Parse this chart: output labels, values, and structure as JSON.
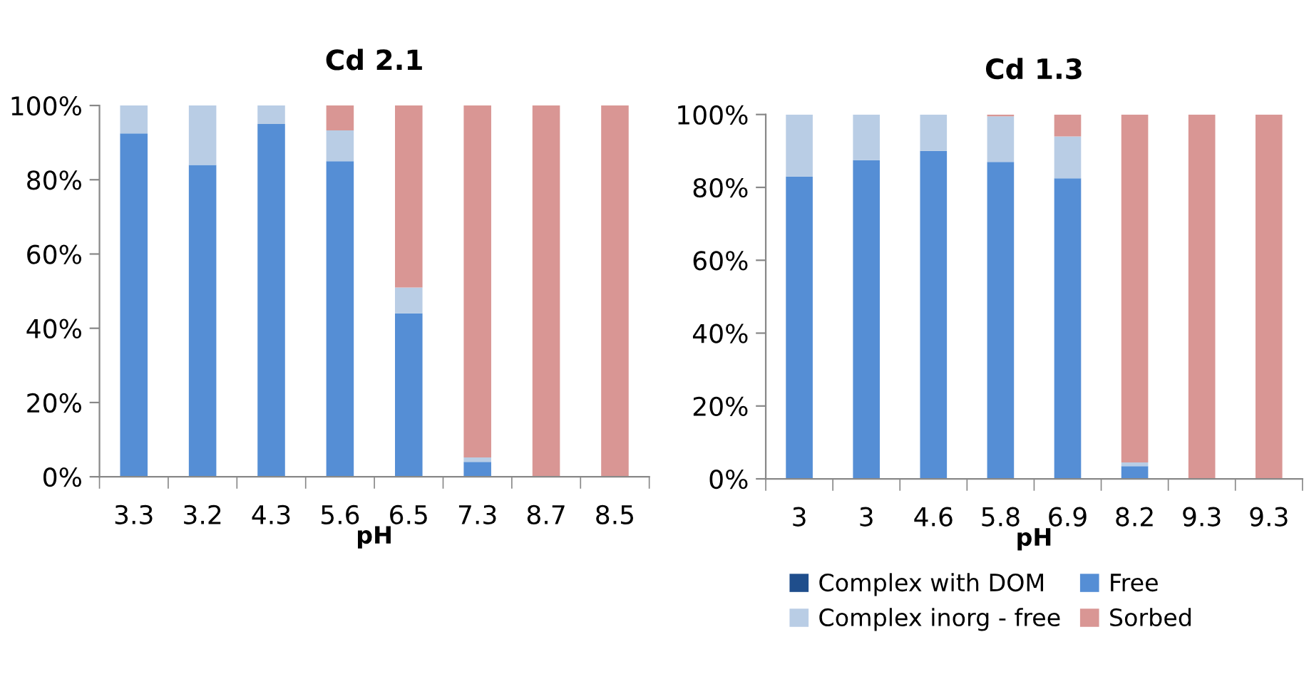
{
  "chart_data": [
    {
      "type": "bar",
      "title": "Cd 2.1",
      "xlabel": "pH",
      "categories": [
        "3.3",
        "3.2",
        "4.3",
        "5.6",
        "6.5",
        "7.3",
        "8.7",
        "8.5"
      ],
      "stacked": true,
      "legend": false,
      "grid": false,
      "ylim": [
        0,
        100
      ],
      "yticks": [
        {
          "value": 0,
          "label": "0%"
        },
        {
          "value": 20,
          "label": "20%"
        },
        {
          "value": 40,
          "label": "40%"
        },
        {
          "value": 60,
          "label": "60%"
        },
        {
          "value": 80,
          "label": "80%"
        },
        {
          "value": 100,
          "label": "100%"
        }
      ],
      "series": [
        {
          "color": "#1f4e8c",
          "values": [
            0,
            0,
            0,
            0,
            0,
            0,
            0,
            0
          ]
        },
        {
          "color": "#558ed5",
          "values": [
            92.5,
            84,
            95,
            85,
            44,
            4,
            0,
            0
          ]
        },
        {
          "color": "#b9cde5",
          "values": [
            7.5,
            16,
            5,
            8.3,
            7,
            1.2,
            0,
            0
          ]
        },
        {
          "color": "#d99694",
          "values": [
            0,
            0,
            0,
            6.7,
            49,
            94.8,
            100,
            100
          ]
        }
      ]
    },
    {
      "type": "bar",
      "title": "Cd 1.3",
      "xlabel": "pH",
      "categories": [
        "3",
        "3",
        "4.6",
        "5.8",
        "6.9",
        "8.2",
        "9.3",
        "9.3"
      ],
      "stacked": true,
      "legend": "bottom",
      "grid": false,
      "ylim": [
        0,
        100
      ],
      "yticks": [
        {
          "value": 0,
          "label": "0%"
        },
        {
          "value": 20,
          "label": "20%"
        },
        {
          "value": 40,
          "label": "40%"
        },
        {
          "value": 60,
          "label": "60%"
        },
        {
          "value": 80,
          "label": "80%"
        },
        {
          "value": 100,
          "label": "100%"
        }
      ],
      "series": [
        {
          "name": "Complex with DOM",
          "color": "#1f4e8c",
          "values": [
            0,
            0,
            0,
            0,
            0,
            0,
            0,
            0
          ]
        },
        {
          "name": "Free",
          "color": "#558ed5",
          "values": [
            83,
            87.5,
            90,
            87,
            82.5,
            3.5,
            0,
            0
          ]
        },
        {
          "name": "Complex inorg - free",
          "color": "#b9cde5",
          "values": [
            17,
            12.5,
            10,
            12.5,
            11.5,
            1,
            0,
            0
          ]
        },
        {
          "name": "Sorbed",
          "color": "#d99694",
          "values": [
            0,
            0,
            0,
            0.5,
            6,
            95.5,
            100,
            100
          ]
        }
      ]
    }
  ]
}
